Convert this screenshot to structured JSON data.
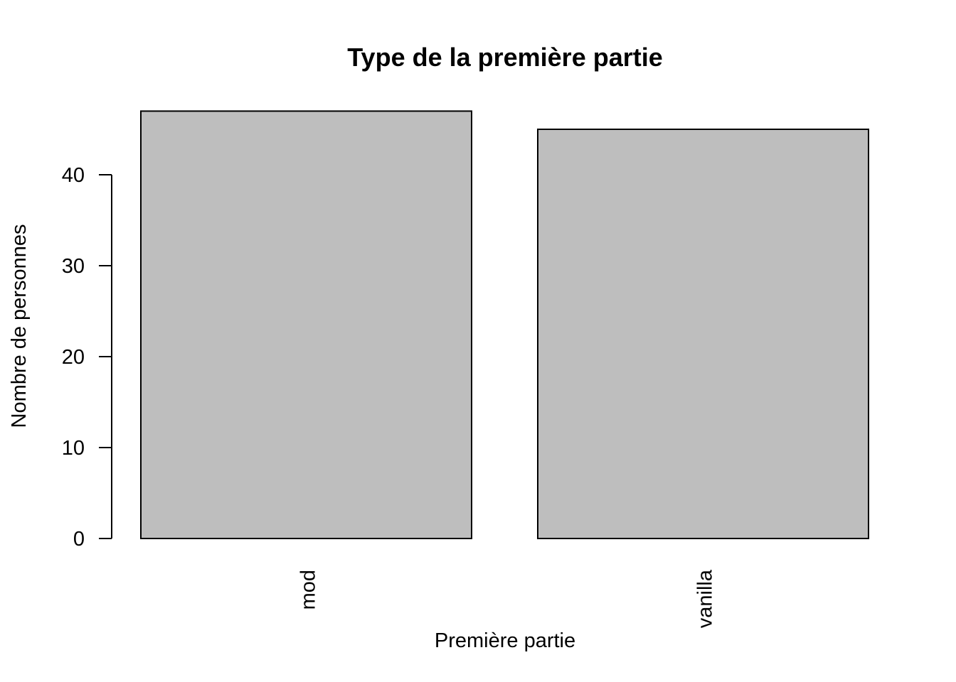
{
  "chart_data": {
    "type": "bar",
    "title": "Type de la première partie",
    "xlabel": "Première partie",
    "ylabel": "Nombre de personnes",
    "categories": [
      "mod",
      "vanilla"
    ],
    "values": [
      47,
      45
    ],
    "ylim": [
      0,
      47
    ],
    "yticks": [
      0,
      10,
      20,
      30,
      40
    ],
    "bar_color": "#bebebe",
    "grid": false
  }
}
